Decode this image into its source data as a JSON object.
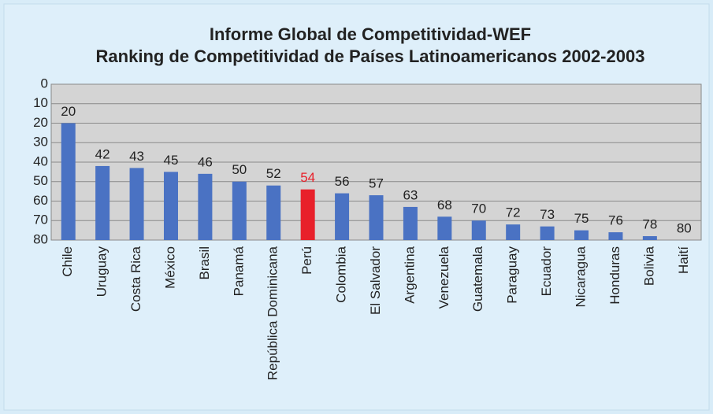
{
  "chart_data": {
    "type": "bar",
    "title": "Informe Global de Competitividad-WEF",
    "subtitle": "Ranking de Competitividad de Países Latinoamericanos 2002-2003",
    "categories": [
      "Chile",
      "Uruguay",
      "Costa Rica",
      "México",
      "Brasil",
      "Panamá",
      "República Dominicana",
      "Perú",
      "Colombia",
      "El Salvador",
      "Argentina",
      "Venezuela",
      "Guatemala",
      "Paraguay",
      "Ecuador",
      "Nicaragua",
      "Honduras",
      "Bolivia",
      "Haití"
    ],
    "values": [
      20,
      42,
      43,
      45,
      46,
      50,
      52,
      54,
      56,
      57,
      63,
      68,
      70,
      72,
      73,
      75,
      76,
      78,
      80
    ],
    "colors": [
      "#4a72c3",
      "#4a72c3",
      "#4a72c3",
      "#4a72c3",
      "#4a72c3",
      "#4a72c3",
      "#4a72c3",
      "#e8202a",
      "#4a72c3",
      "#4a72c3",
      "#4a72c3",
      "#4a72c3",
      "#4a72c3",
      "#4a72c3",
      "#4a72c3",
      "#4a72c3",
      "#4a72c3",
      "#4a72c3",
      "#4a72c3"
    ],
    "ylim": [
      0,
      80
    ],
    "inverted_y": true,
    "yticks": [
      0,
      10,
      20,
      30,
      40,
      50,
      60,
      70,
      80
    ],
    "grid": true
  }
}
